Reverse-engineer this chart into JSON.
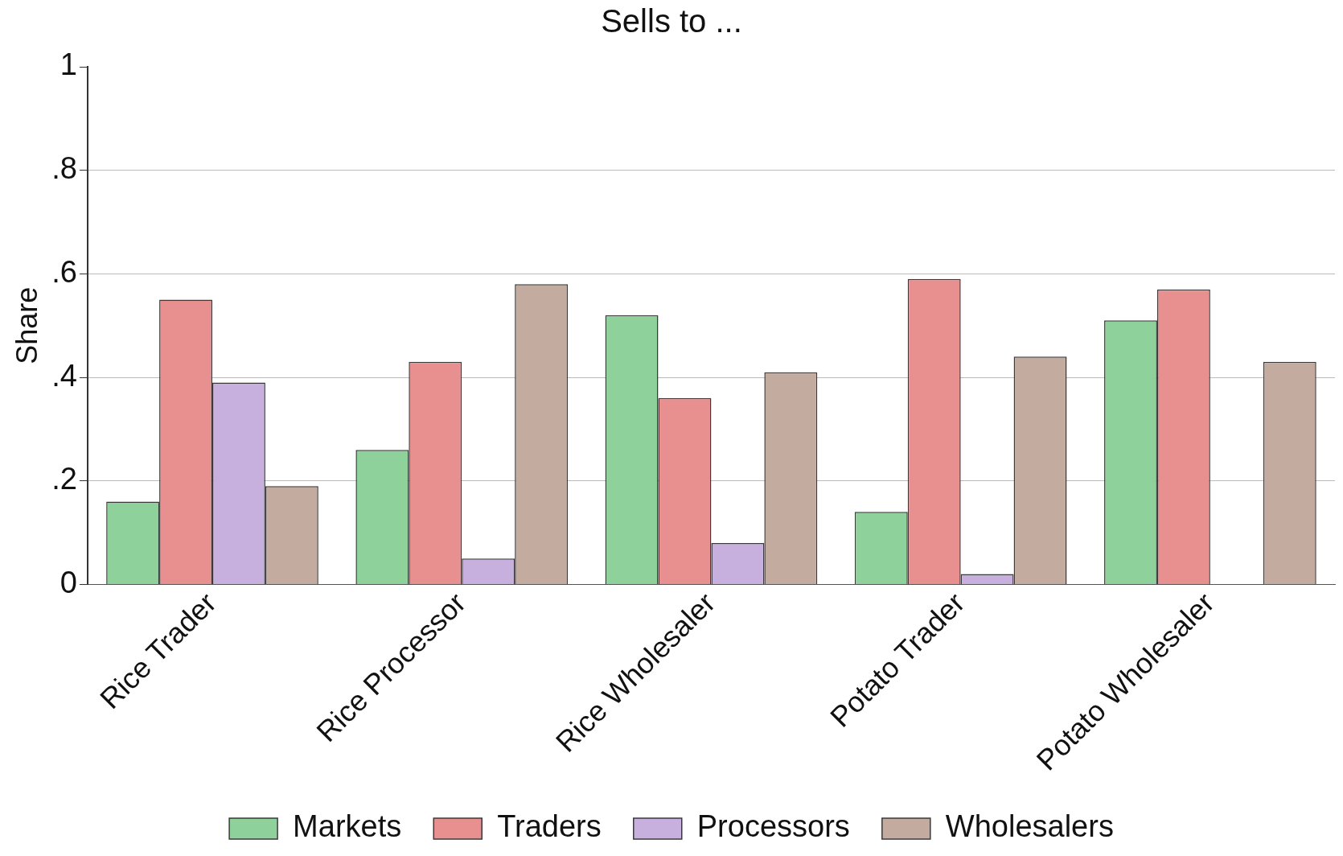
{
  "chart_data": {
    "type": "bar",
    "title": "Sells to ...",
    "ylabel": "Share",
    "categories": [
      "Rice Trader",
      "Rice Processor",
      "Rice Wholesaler",
      "Potato Trader",
      "Potato Wholesaler"
    ],
    "series": [
      {
        "name": "Markets",
        "color": "#8fd19a",
        "values": [
          0.16,
          0.26,
          0.52,
          0.14,
          0.51
        ]
      },
      {
        "name": "Traders",
        "color": "#e89090",
        "values": [
          0.55,
          0.43,
          0.36,
          0.59,
          0.57
        ]
      },
      {
        "name": "Processors",
        "color": "#c8b0de",
        "values": [
          0.39,
          0.05,
          0.08,
          0.02,
          0.0
        ]
      },
      {
        "name": "Wholesalers",
        "color": "#c4aba0",
        "values": [
          0.19,
          0.58,
          0.41,
          0.44,
          0.43
        ]
      }
    ],
    "ylim": [
      0,
      1
    ],
    "yticks": [
      {
        "value": 0,
        "label": "0"
      },
      {
        "value": 0.2,
        "label": ".2"
      },
      {
        "value": 0.4,
        "label": ".4"
      },
      {
        "value": 0.6,
        "label": ".6"
      },
      {
        "value": 0.8,
        "label": ".8"
      },
      {
        "value": 1,
        "label": "1"
      }
    ],
    "grid": "y",
    "legend": "bottom"
  }
}
